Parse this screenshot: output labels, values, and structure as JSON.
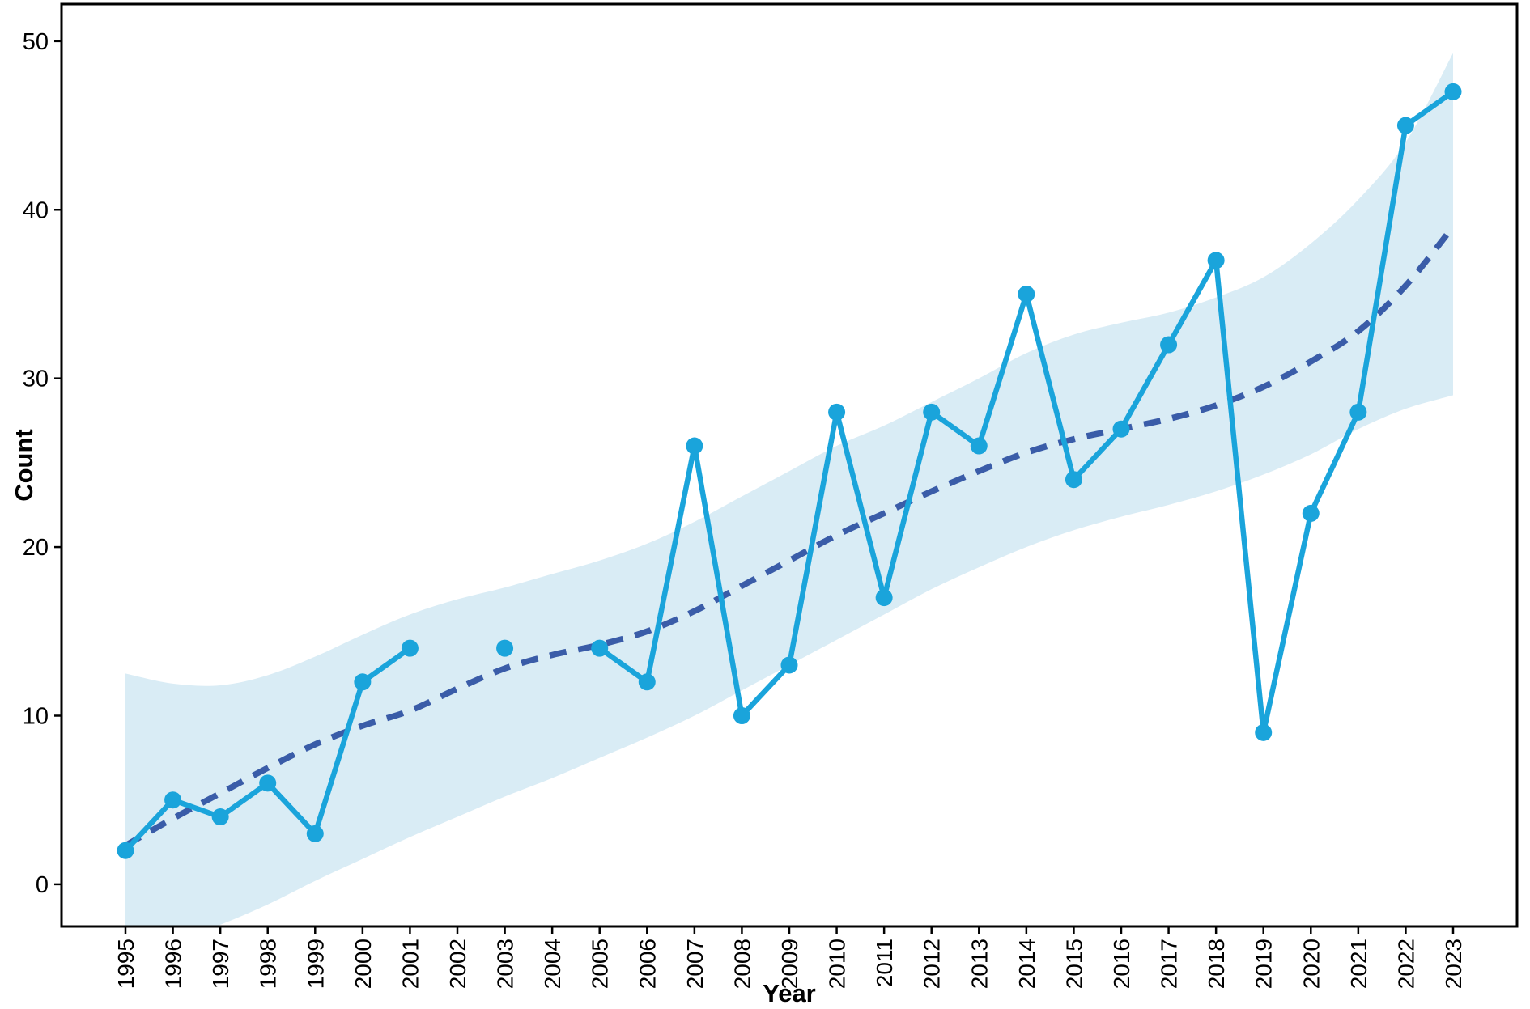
{
  "figure": {
    "xlabel": "Year",
    "ylabel": "Count"
  },
  "chart_data": {
    "type": "line",
    "title": "",
    "xlabel": "Year",
    "ylabel": "Count",
    "x": [
      1995,
      1996,
      1997,
      1998,
      1999,
      2000,
      2001,
      2002,
      2003,
      2004,
      2005,
      2006,
      2007,
      2008,
      2009,
      2010,
      2011,
      2012,
      2013,
      2014,
      2015,
      2016,
      2017,
      2018,
      2019,
      2020,
      2021,
      2022,
      2023
    ],
    "series": [
      {
        "name": "count",
        "style": "solid-with-markers",
        "color": "#1aa4db",
        "values": [
          2,
          5,
          4,
          6,
          3,
          12,
          14,
          null,
          14,
          null,
          14,
          12,
          26,
          10,
          13,
          28,
          17,
          28,
          26,
          35,
          24,
          27,
          32,
          37,
          9,
          22,
          28,
          45,
          47
        ]
      },
      {
        "name": "trend",
        "style": "dashed",
        "color": "#3a5ca8",
        "values": [
          2.3,
          3.9,
          5.4,
          6.9,
          8.3,
          9.4,
          10.3,
          11.6,
          12.8,
          13.6,
          14.2,
          15.0,
          16.2,
          17.7,
          19.2,
          20.7,
          22.0,
          23.3,
          24.5,
          25.6,
          26.4,
          27.0,
          27.6,
          28.4,
          29.5,
          31.0,
          32.8,
          35.5,
          39.0
        ]
      }
    ],
    "band": {
      "name": "confidence-band",
      "color": "#d9ecf5",
      "upper": [
        12.5,
        11.9,
        11.8,
        12.4,
        13.5,
        14.8,
        16.0,
        16.9,
        17.6,
        18.4,
        19.2,
        20.2,
        21.5,
        23.0,
        24.5,
        26.0,
        27.2,
        28.6,
        30.0,
        31.5,
        32.6,
        33.3,
        33.9,
        34.8,
        36.0,
        38.0,
        40.6,
        44.0,
        49.3
      ],
      "lower": [
        -4.0,
        -3.4,
        -2.4,
        -1.2,
        0.2,
        1.5,
        2.8,
        4.0,
        5.2,
        6.3,
        7.5,
        8.7,
        10.0,
        11.5,
        13.0,
        14.5,
        16.0,
        17.5,
        18.8,
        20.0,
        21.0,
        21.8,
        22.5,
        23.3,
        24.3,
        25.5,
        27.0,
        28.2,
        29.0
      ]
    },
    "ylim": [
      -2.5,
      52.2
    ],
    "yticks": [
      0,
      10,
      20,
      30,
      40,
      50
    ],
    "grid": false,
    "legend": "none",
    "axis_color": "#000000",
    "background": "#ffffff"
  }
}
